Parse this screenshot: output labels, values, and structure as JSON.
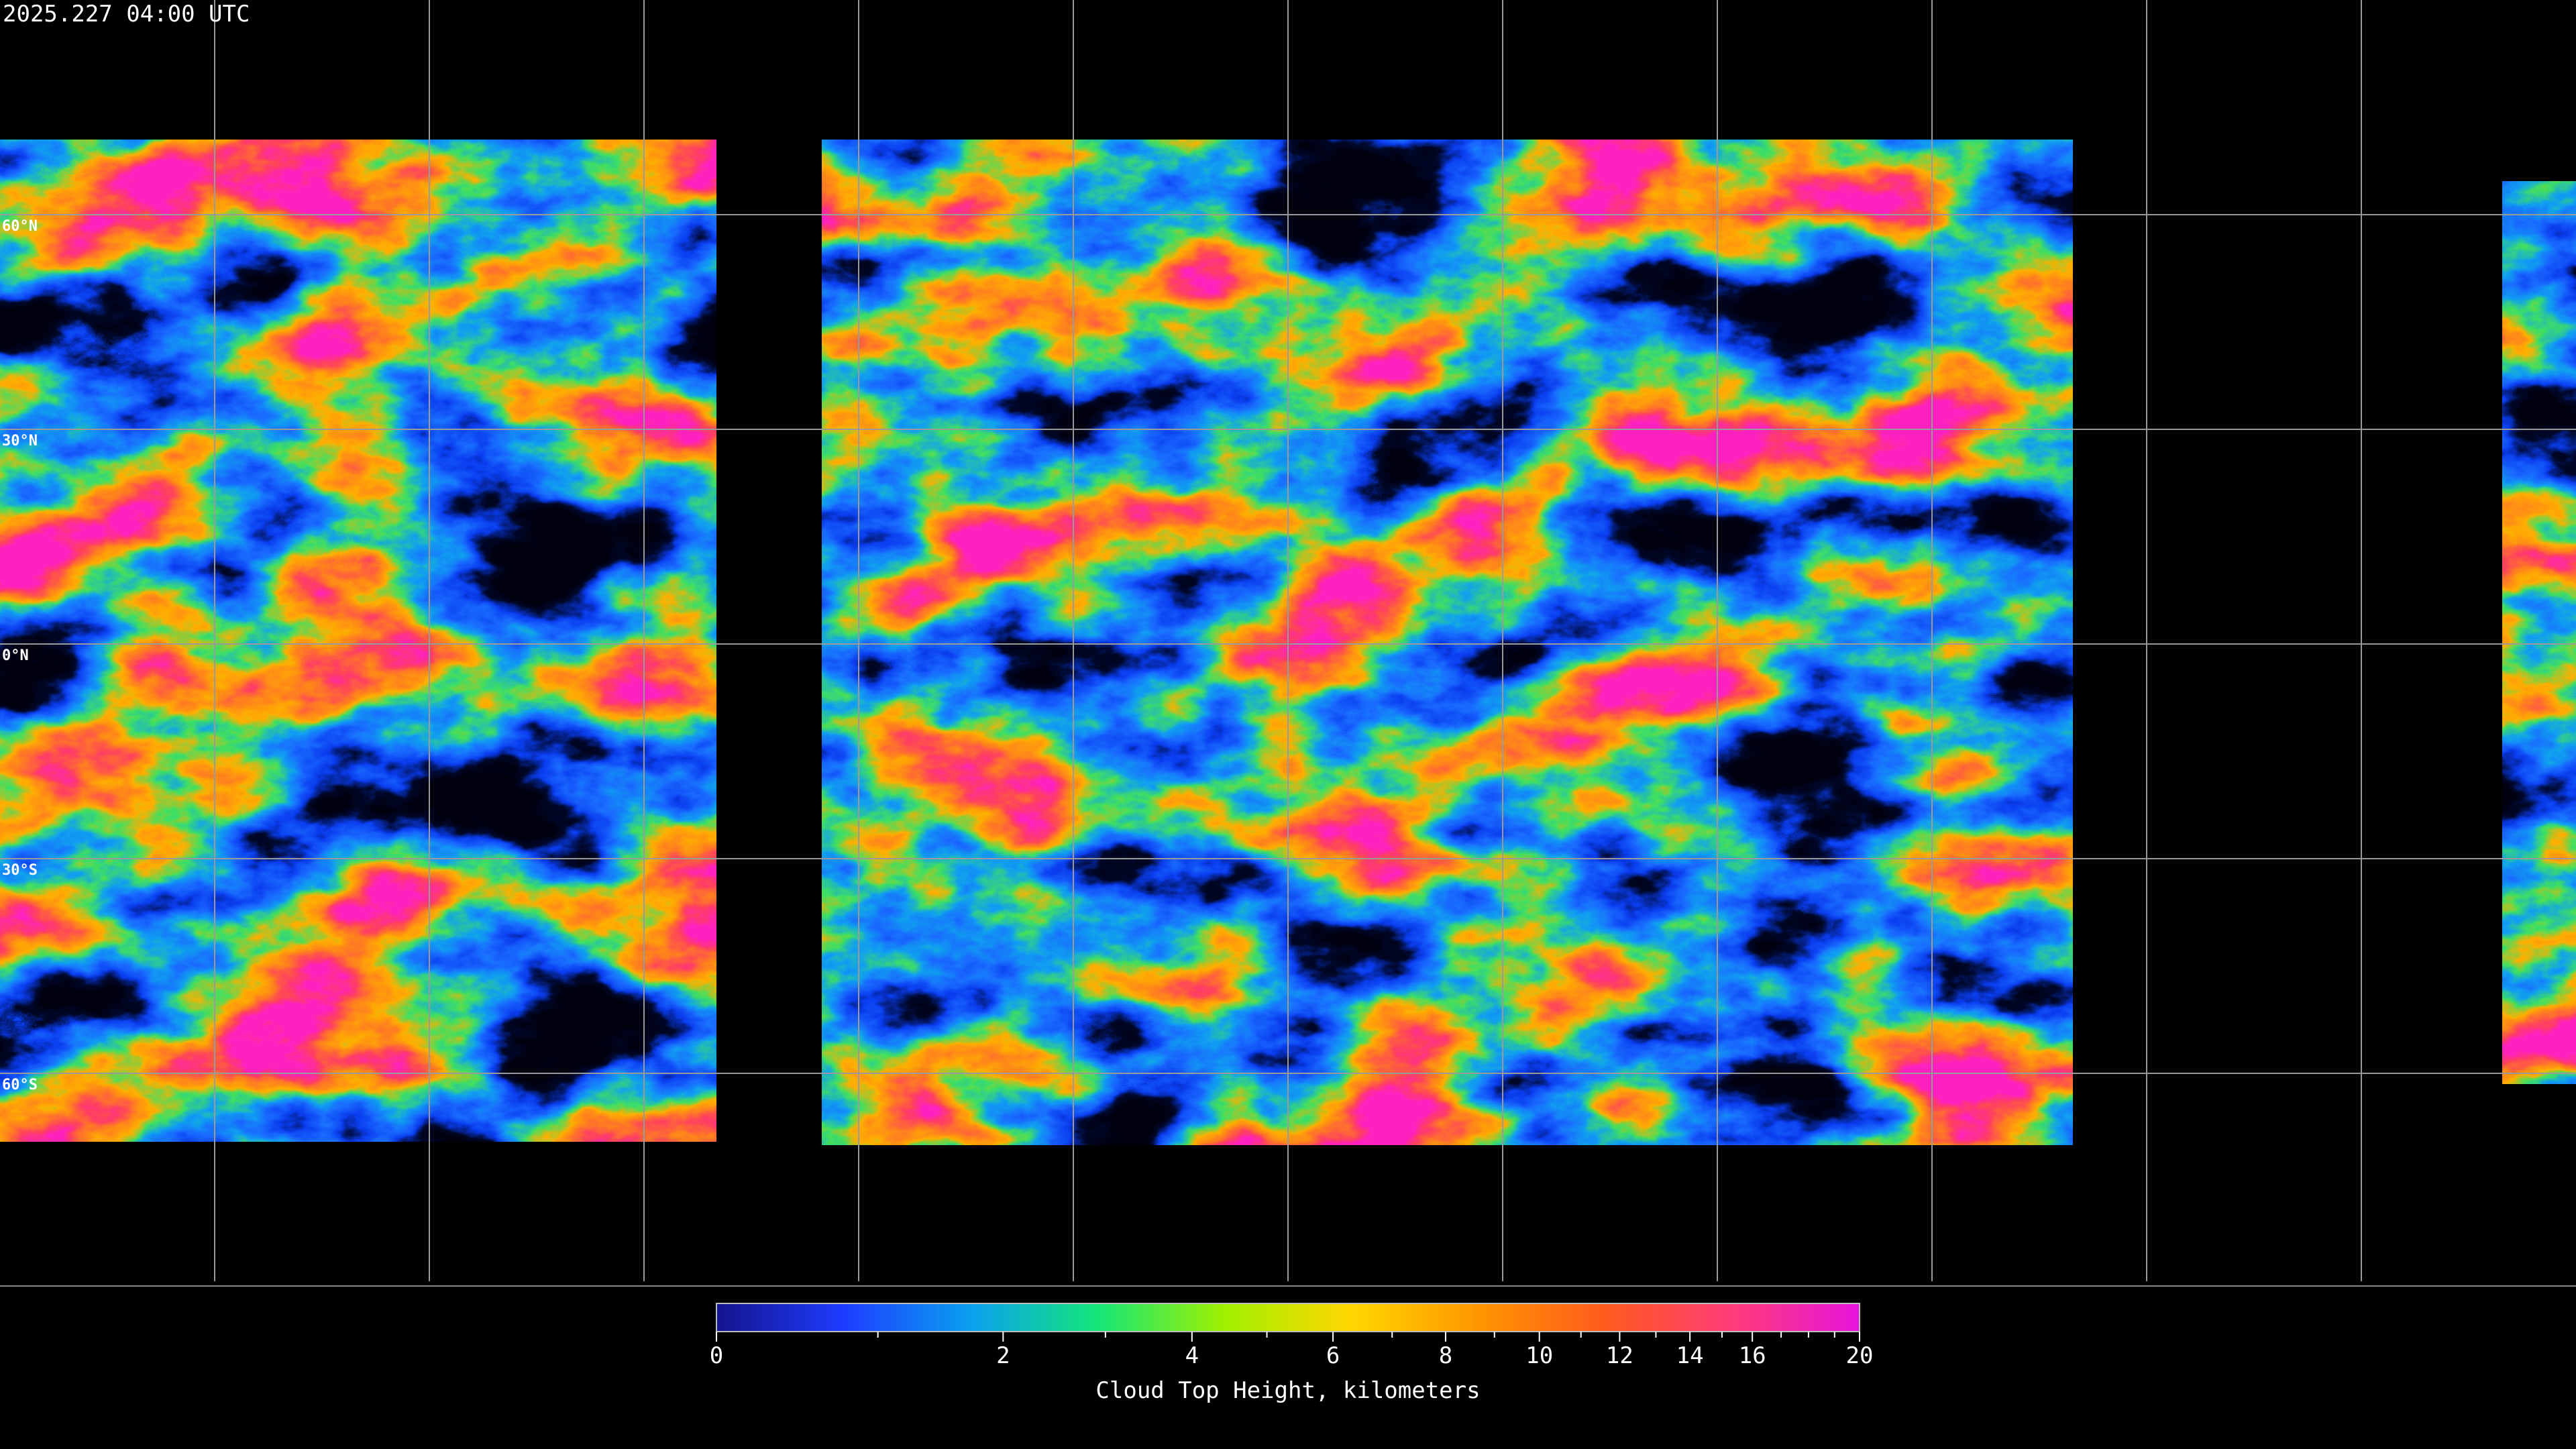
{
  "header": {
    "timestamp": "2025.227 04:00 UTC"
  },
  "map": {
    "latitude_labels": [
      {
        "value": 60,
        "label": "60°N"
      },
      {
        "value": 30,
        "label": "30°N"
      },
      {
        "value": 0,
        "label": "0°N"
      },
      {
        "value": -30,
        "label": "30°S"
      },
      {
        "value": -60,
        "label": "60°S"
      }
    ]
  },
  "colorbar": {
    "label": "Cloud Top Height, kilometers",
    "range": [
      0,
      20
    ],
    "ticks": [
      0,
      2,
      4,
      6,
      8,
      10,
      12,
      14,
      16,
      20
    ],
    "minor_ticks": [
      1,
      3,
      5,
      7,
      9,
      11,
      13,
      15,
      17,
      18,
      19
    ],
    "colors": [
      "#14148c",
      "#1e3cff",
      "#0aa0f0",
      "#14e678",
      "#a0f000",
      "#ffd700",
      "#ff9600",
      "#ff5a1e",
      "#ff3c78",
      "#e614dc"
    ]
  }
}
